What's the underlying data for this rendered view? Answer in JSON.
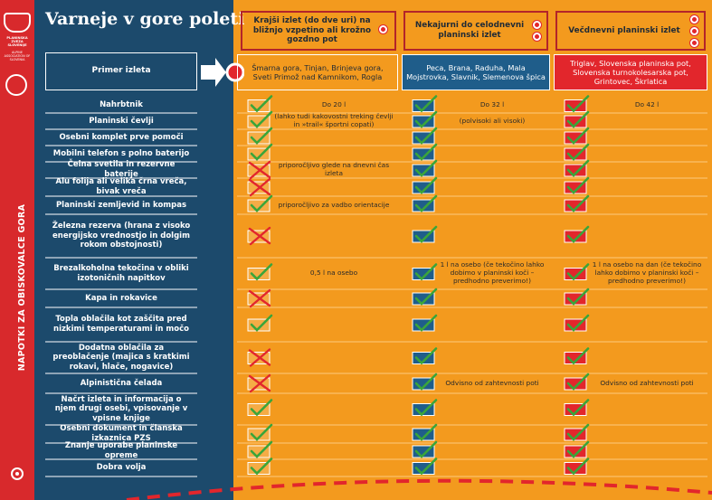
{
  "side": {
    "org": "PLANINSKA ZVEZA SLOVENIJE",
    "org_en": "ALPINE ASSOCIATION OF SLOVENIA",
    "vertical": "NAPOTKI ZA OBISKOVALCE GORA"
  },
  "title": "Varneje v gore poleti",
  "example_label": "Primer izleta",
  "columns": [
    {
      "header": "Krajši izlet (do dve uri) na bližnjo vzpetino ali krožno gozdno pot",
      "examples": "Šmarna gora, Tinjan, Brinjeva gora, Sveti Primož nad Kamnikom, Rogla"
    },
    {
      "header": "Nekajurni do celodnevni planinski izlet",
      "examples": "Peca, Brana, Raduha, Mala Mojstrovka, Slavnik, Slemenova špica"
    },
    {
      "header": "Večdnevni planinski izlet",
      "examples": "Triglav, Slovenska planinska pot, Slovenska turnokolesarska pot, Grintovec, Škrlatica"
    }
  ],
  "rows": [
    {
      "label": "Nahrbtnik",
      "cells": [
        {
          "mark": "check",
          "note": "Do 20 l"
        },
        {
          "mark": "check",
          "note": "Do 32 l"
        },
        {
          "mark": "check",
          "note": "Do 42 l"
        }
      ]
    },
    {
      "label": "Planinski čevlji",
      "cells": [
        {
          "mark": "check",
          "note": "(lahko tudi kakovostni treking čevlji in »trail« športni copati)"
        },
        {
          "mark": "check",
          "note": "(polvisoki ali visoki)"
        },
        {
          "mark": "check"
        }
      ]
    },
    {
      "label": "Osebni komplet prve pomoči",
      "cells": [
        {
          "mark": "check"
        },
        {
          "mark": "check"
        },
        {
          "mark": "check"
        }
      ]
    },
    {
      "label": "Mobilni telefon s polno baterijo",
      "cells": [
        {
          "mark": "check"
        },
        {
          "mark": "check"
        },
        {
          "mark": "check"
        }
      ]
    },
    {
      "label": "Čelna svetila in rezervne baterije",
      "cells": [
        {
          "mark": "cross",
          "note": "priporočljivo glede na dnevni čas izleta"
        },
        {
          "mark": "check"
        },
        {
          "mark": "check"
        }
      ]
    },
    {
      "label": "Alu folija ali velika črna vreča, bivak vreča",
      "cells": [
        {
          "mark": "cross"
        },
        {
          "mark": "check"
        },
        {
          "mark": "check"
        }
      ]
    },
    {
      "label": "Planinski zemljevid in kompas",
      "cells": [
        {
          "mark": "check",
          "note": "priporočljivo za vadbo orientacije"
        },
        {
          "mark": "check"
        },
        {
          "mark": "check"
        }
      ]
    },
    {
      "label": "Železna rezerva (hrana z visoko energijsko vrednostjo in dolgim rokom obstojnosti)",
      "cells": [
        {
          "mark": "cross"
        },
        {
          "mark": "check"
        },
        {
          "mark": "check"
        }
      ]
    },
    {
      "label": "Brezalkoholna tekočina v obliki izotoničnih napitkov",
      "cells": [
        {
          "mark": "check",
          "note": "0,5 l na osebo"
        },
        {
          "mark": "check",
          "note": "1 l na osebo (če tekočino lahko dobimo v planinski koči – predhodno preverimo!)"
        },
        {
          "mark": "check",
          "note": "1 l na osebo na dan (če tekočino lahko dobimo v planinski koči – predhodno preverimo!)"
        }
      ]
    },
    {
      "label": "Kapa in rokavice",
      "cells": [
        {
          "mark": "cross"
        },
        {
          "mark": "check"
        },
        {
          "mark": "check"
        }
      ]
    },
    {
      "label": "Topla oblačila kot zaščita pred nizkimi temperaturami in močo",
      "cells": [
        {
          "mark": "check"
        },
        {
          "mark": "check"
        },
        {
          "mark": "check"
        }
      ]
    },
    {
      "label": "Dodatna oblačila za preoblačenje (majica s kratkimi rokavi, hlače, nogavice)",
      "cells": [
        {
          "mark": "cross"
        },
        {
          "mark": "check"
        },
        {
          "mark": "check"
        }
      ]
    },
    {
      "label": "Alpinistična čelada",
      "cells": [
        {
          "mark": "cross"
        },
        {
          "mark": "check",
          "note": "Odvisno od zahtevnosti poti"
        },
        {
          "mark": "check",
          "note": "Odvisno od zahtevnosti poti"
        }
      ]
    },
    {
      "label": "Načrt izleta in informacija o njem drugi osebi, vpisovanje v vpisne knjige",
      "cells": [
        {
          "mark": "check"
        },
        {
          "mark": "check"
        },
        {
          "mark": "check"
        }
      ]
    },
    {
      "label": "Osebni dokument in članska izkaznica PZS",
      "cells": [
        {
          "mark": "check"
        },
        {
          "mark": "check"
        },
        {
          "mark": "check"
        }
      ]
    },
    {
      "label": "Znanje uporabe planinske opreme",
      "cells": [
        {
          "mark": "check"
        },
        {
          "mark": "check"
        },
        {
          "mark": "check"
        }
      ]
    },
    {
      "label": "Dobra volja",
      "cells": [
        {
          "mark": "check"
        },
        {
          "mark": "check"
        },
        {
          "mark": "check"
        }
      ]
    }
  ]
}
